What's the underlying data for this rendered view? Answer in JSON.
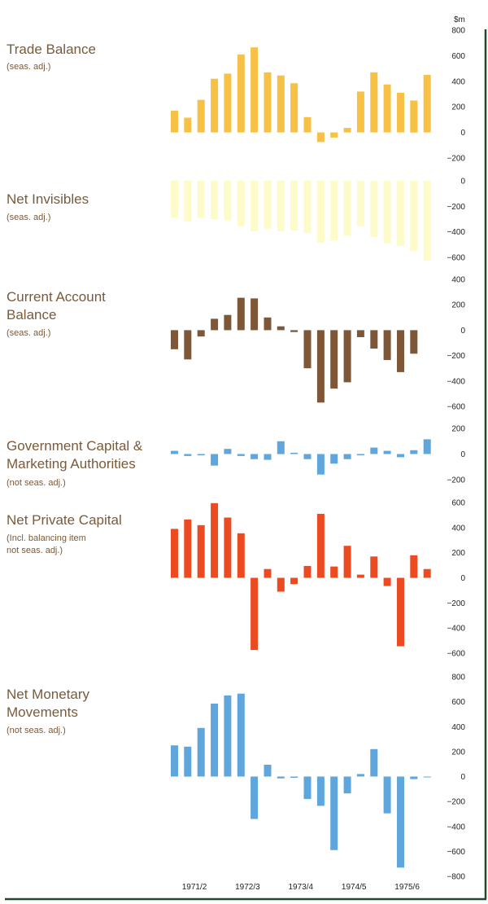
{
  "unit_label": "$m",
  "x_labels": [
    "1971/2",
    "1972/3",
    "1973/4",
    "1974/5",
    "1975/6"
  ],
  "colors": {
    "frame": "#1e4a2c",
    "title": "#7a5a3a"
  },
  "chart_data": [
    {
      "type": "bar",
      "title_lines": [
        "Trade Balance"
      ],
      "subtitle_lines": [
        "(seas. adj.)"
      ],
      "color": "#f6c144",
      "ylim": [
        -200,
        800
      ],
      "yticks": [
        800,
        600,
        400,
        200,
        0,
        -200
      ],
      "values": [
        170,
        115,
        255,
        420,
        460,
        610,
        665,
        470,
        445,
        385,
        120,
        -75,
        -40,
        35,
        320,
        470,
        375,
        310,
        250,
        450
      ]
    },
    {
      "type": "bar",
      "title_lines": [
        "Net Invisibles"
      ],
      "subtitle_lines": [
        "(seas. adj.)"
      ],
      "color": "#fdfbc9",
      "ylim": [
        -600,
        0
      ],
      "yticks": [
        0,
        -200,
        -400,
        -600
      ],
      "values": [
        -290,
        -320,
        -290,
        -300,
        -310,
        -355,
        -395,
        -375,
        -395,
        -390,
        -410,
        -485,
        -465,
        -430,
        -355,
        -440,
        -490,
        -510,
        -550,
        -625
      ]
    },
    {
      "type": "bar",
      "title_lines": [
        "Current Account",
        "Balance"
      ],
      "subtitle_lines": [
        "(seas. adj.)"
      ],
      "color": "#7d5738",
      "ylim": [
        -600,
        400
      ],
      "yticks": [
        400,
        200,
        0,
        -200,
        -400,
        -600
      ],
      "values": [
        -150,
        -230,
        -50,
        90,
        120,
        255,
        250,
        100,
        30,
        -15,
        -300,
        -570,
        -460,
        -410,
        -55,
        -145,
        -235,
        -330,
        -185,
        0
      ]
    },
    {
      "type": "bar",
      "title_lines": [
        "Government Capital &",
        "Marketing Authorities"
      ],
      "subtitle_lines": [
        "(not seas. adj.)"
      ],
      "color": "#5fa6dd",
      "ylim": [
        -200,
        200
      ],
      "yticks": [
        200,
        0,
        -200
      ],
      "values": [
        25,
        -15,
        -10,
        -90,
        40,
        -15,
        -40,
        -45,
        100,
        10,
        -40,
        -160,
        -75,
        -40,
        -10,
        50,
        25,
        -25,
        30,
        115
      ]
    },
    {
      "type": "bar",
      "title_lines": [
        "Net Private Capital"
      ],
      "subtitle_lines": [
        "(Incl. balancing item",
        "not seas. adj.)"
      ],
      "color": "#ec4b22",
      "ylim": [
        -600,
        600
      ],
      "yticks": [
        600,
        400,
        200,
        0,
        -200,
        -400,
        -600
      ],
      "values": [
        390,
        465,
        420,
        595,
        480,
        355,
        -575,
        70,
        -110,
        -50,
        95,
        510,
        90,
        255,
        25,
        170,
        -65,
        -545,
        180,
        70
      ]
    },
    {
      "type": "bar",
      "title_lines": [
        "Net Monetary",
        "Movements"
      ],
      "subtitle_lines": [
        "(not seas. adj.)"
      ],
      "color": "#5fa6dd",
      "ylim": [
        -800,
        800
      ],
      "yticks": [
        800,
        600,
        400,
        200,
        0,
        -200,
        -400,
        -600,
        -800
      ],
      "values": [
        250,
        240,
        390,
        585,
        650,
        665,
        -340,
        95,
        -15,
        -10,
        -180,
        -235,
        -590,
        -135,
        20,
        220,
        -295,
        -730,
        -20,
        -5
      ]
    }
  ]
}
